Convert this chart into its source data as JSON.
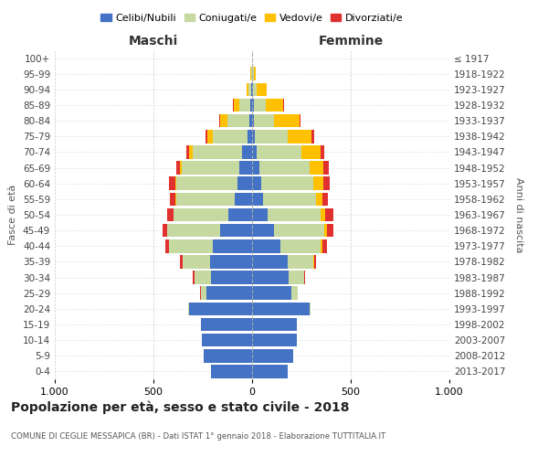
{
  "age_groups": [
    "0-4",
    "5-9",
    "10-14",
    "15-19",
    "20-24",
    "25-29",
    "30-34",
    "35-39",
    "40-44",
    "45-49",
    "50-54",
    "55-59",
    "60-64",
    "65-69",
    "70-74",
    "75-79",
    "80-84",
    "85-89",
    "90-94",
    "95-99",
    "100+"
  ],
  "birth_years": [
    "2013-2017",
    "2008-2012",
    "2003-2007",
    "1998-2002",
    "1993-1997",
    "1988-1992",
    "1983-1987",
    "1978-1982",
    "1973-1977",
    "1968-1972",
    "1963-1967",
    "1958-1962",
    "1953-1957",
    "1948-1952",
    "1943-1947",
    "1938-1942",
    "1933-1937",
    "1928-1932",
    "1923-1927",
    "1918-1922",
    "≤ 1917"
  ],
  "males": {
    "celibi": [
      210,
      245,
      255,
      260,
      320,
      230,
      210,
      215,
      200,
      160,
      120,
      90,
      75,
      65,
      50,
      25,
      15,
      8,
      5,
      2,
      0
    ],
    "coniugati": [
      0,
      0,
      0,
      0,
      5,
      30,
      80,
      135,
      220,
      270,
      280,
      295,
      310,
      290,
      250,
      175,
      110,
      55,
      15,
      3,
      0
    ],
    "vedovi": [
      0,
      0,
      0,
      0,
      0,
      0,
      0,
      0,
      0,
      0,
      0,
      5,
      5,
      10,
      20,
      25,
      35,
      30,
      10,
      2,
      0
    ],
    "divorziati": [
      0,
      0,
      0,
      0,
      0,
      5,
      10,
      15,
      20,
      25,
      30,
      25,
      30,
      20,
      15,
      10,
      5,
      5,
      0,
      0,
      0
    ]
  },
  "females": {
    "nubili": [
      180,
      210,
      225,
      225,
      290,
      200,
      185,
      180,
      145,
      110,
      80,
      55,
      45,
      35,
      25,
      15,
      10,
      8,
      5,
      2,
      0
    ],
    "coniugate": [
      0,
      0,
      0,
      0,
      8,
      30,
      80,
      130,
      200,
      255,
      265,
      270,
      265,
      255,
      225,
      165,
      100,
      60,
      20,
      5,
      0
    ],
    "vedove": [
      0,
      0,
      0,
      0,
      0,
      0,
      0,
      5,
      10,
      15,
      25,
      30,
      50,
      70,
      95,
      120,
      130,
      90,
      50,
      10,
      1
    ],
    "divorziate": [
      0,
      0,
      0,
      0,
      0,
      3,
      5,
      10,
      25,
      30,
      40,
      30,
      35,
      30,
      20,
      15,
      5,
      5,
      0,
      0,
      0
    ]
  },
  "colors": {
    "celibi_nubili": "#4472c4",
    "coniugati": "#c5d9a0",
    "vedovi": "#ffc000",
    "divorziati": "#e03030"
  },
  "title": "Popolazione per età, sesso e stato civile - 2018",
  "subtitle": "COMUNE DI CEGLIE MESSAPICA (BR) - Dati ISTAT 1° gennaio 2018 - Elaborazione TUTTITALIA.IT",
  "xlabel_left": "Maschi",
  "xlabel_right": "Femmine",
  "ylabel_left": "Fasce di età",
  "ylabel_right": "Anni di nascita",
  "legend_labels": [
    "Celibi/Nubili",
    "Coniugati/e",
    "Vedovi/e",
    "Divorziati/e"
  ],
  "xlim": 1000,
  "background_color": "#ffffff",
  "grid_color": "#cccccc"
}
